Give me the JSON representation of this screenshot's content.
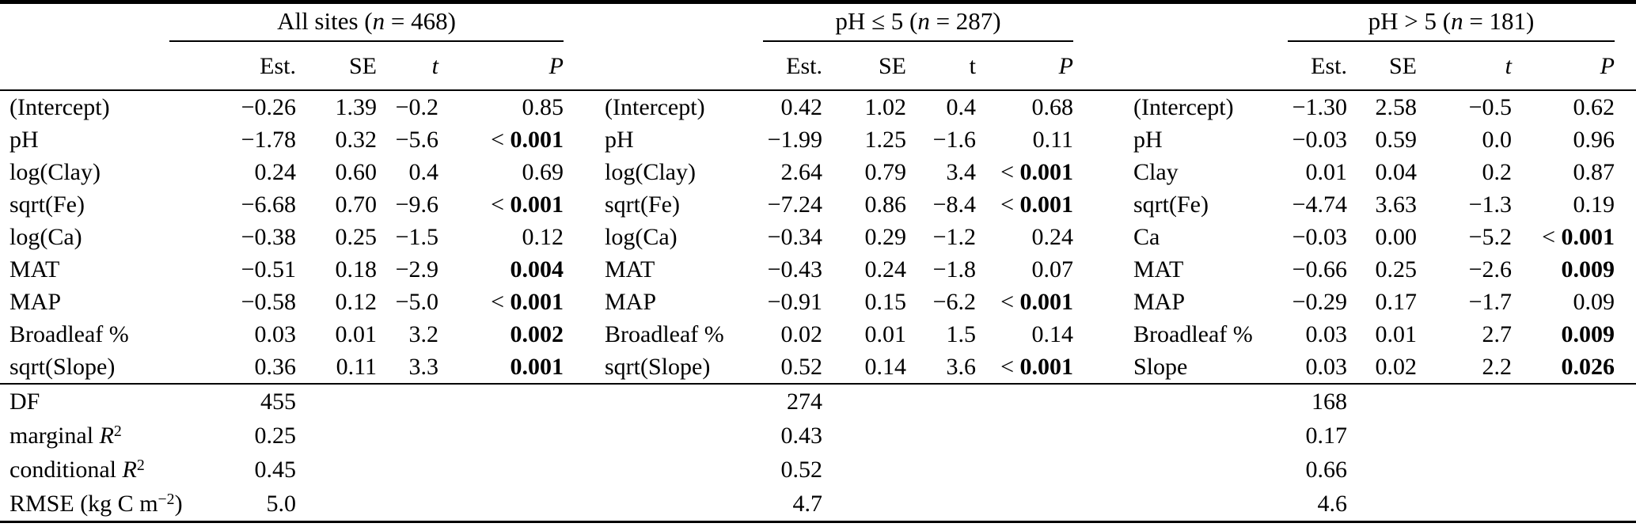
{
  "table": {
    "groups": [
      {
        "id": "all-sites",
        "title": {
          "pre": "All sites (",
          "it": "n",
          "post": " = 468)"
        },
        "columns": [
          {
            "label": "Est.",
            "italic": false
          },
          {
            "label": "SE",
            "italic": false
          },
          {
            "label": "t",
            "italic": true
          },
          {
            "label": "P",
            "italic": true
          }
        ],
        "rows": [
          {
            "label": "(Intercept)",
            "est": "−0.26",
            "se": "1.39",
            "t": "−0.2",
            "p": {
              "prefix": "",
              "value": "0.85",
              "bold": false
            }
          },
          {
            "label": "pH",
            "est": "−1.78",
            "se": "0.32",
            "t": "−5.6",
            "p": {
              "prefix": "< ",
              "value": "0.001",
              "bold": true
            }
          },
          {
            "label": "log(Clay)",
            "est": "0.24",
            "se": "0.60",
            "t": "0.4",
            "p": {
              "prefix": "",
              "value": "0.69",
              "bold": false
            }
          },
          {
            "label": "sqrt(Fe)",
            "est": "−6.68",
            "se": "0.70",
            "t": "−9.6",
            "p": {
              "prefix": "< ",
              "value": "0.001",
              "bold": true
            }
          },
          {
            "label": "log(Ca)",
            "est": "−0.38",
            "se": "0.25",
            "t": "−1.5",
            "p": {
              "prefix": "",
              "value": "0.12",
              "bold": false
            }
          },
          {
            "label": "MAT",
            "est": "−0.51",
            "se": "0.18",
            "t": "−2.9",
            "p": {
              "prefix": "",
              "value": "0.004",
              "bold": true
            }
          },
          {
            "label": "MAP",
            "est": "−0.58",
            "se": "0.12",
            "t": "−5.0",
            "p": {
              "prefix": "< ",
              "value": "0.001",
              "bold": true
            }
          },
          {
            "label": "Broadleaf %",
            "est": "0.03",
            "se": "0.01",
            "t": "3.2",
            "p": {
              "prefix": "",
              "value": "0.002",
              "bold": true
            }
          },
          {
            "label": "sqrt(Slope)",
            "est": "0.36",
            "se": "0.11",
            "t": "3.3",
            "p": {
              "prefix": "",
              "value": "0.001",
              "bold": true
            }
          }
        ],
        "summary": [
          "455",
          "0.25",
          "0.45",
          "5.0"
        ]
      },
      {
        "id": "ph-le-5",
        "title": {
          "pre": "pH ≤ 5 (",
          "it": "n",
          "post": " = 287)"
        },
        "columns": [
          {
            "label": "Est.",
            "italic": false
          },
          {
            "label": "SE",
            "italic": false
          },
          {
            "label": "t",
            "italic": false
          },
          {
            "label": "P",
            "italic": true
          }
        ],
        "rows": [
          {
            "label": "(Intercept)",
            "est": "0.42",
            "se": "1.02",
            "t": "0.4",
            "p": {
              "prefix": "",
              "value": "0.68",
              "bold": false
            }
          },
          {
            "label": "pH",
            "est": "−1.99",
            "se": "1.25",
            "t": "−1.6",
            "p": {
              "prefix": "",
              "value": "0.11",
              "bold": false
            }
          },
          {
            "label": "log(Clay)",
            "est": "2.64",
            "se": "0.79",
            "t": "3.4",
            "p": {
              "prefix": "< ",
              "value": "0.001",
              "bold": true
            }
          },
          {
            "label": "sqrt(Fe)",
            "est": "−7.24",
            "se": "0.86",
            "t": "−8.4",
            "p": {
              "prefix": "< ",
              "value": "0.001",
              "bold": true
            }
          },
          {
            "label": "log(Ca)",
            "est": "−0.34",
            "se": "0.29",
            "t": "−1.2",
            "p": {
              "prefix": "",
              "value": "0.24",
              "bold": false
            }
          },
          {
            "label": "MAT",
            "est": "−0.43",
            "se": "0.24",
            "t": "−1.8",
            "p": {
              "prefix": "",
              "value": "0.07",
              "bold": false
            }
          },
          {
            "label": "MAP",
            "est": "−0.91",
            "se": "0.15",
            "t": "−6.2",
            "p": {
              "prefix": "< ",
              "value": "0.001",
              "bold": true
            }
          },
          {
            "label": "Broadleaf %",
            "est": "0.02",
            "se": "0.01",
            "t": "1.5",
            "p": {
              "prefix": "",
              "value": "0.14",
              "bold": false
            }
          },
          {
            "label": "sqrt(Slope)",
            "est": "0.52",
            "se": "0.14",
            "t": "3.6",
            "p": {
              "prefix": "< ",
              "value": "0.001",
              "bold": true
            }
          }
        ],
        "summary": [
          "274",
          "0.43",
          "0.52",
          "4.7"
        ]
      },
      {
        "id": "ph-gt-5",
        "title": {
          "pre": "pH > 5 (",
          "it": "n",
          "post": " = 181)"
        },
        "columns": [
          {
            "label": "Est.",
            "italic": false
          },
          {
            "label": "SE",
            "italic": false
          },
          {
            "label": "t",
            "italic": true
          },
          {
            "label": "P",
            "italic": true
          }
        ],
        "rows": [
          {
            "label": "(Intercept)",
            "est": "−1.30",
            "se": "2.58",
            "t": "−0.5",
            "p": {
              "prefix": "",
              "value": "0.62",
              "bold": false
            }
          },
          {
            "label": "pH",
            "est": "−0.03",
            "se": "0.59",
            "t": "0.0",
            "p": {
              "prefix": "",
              "value": "0.96",
              "bold": false
            }
          },
          {
            "label": "Clay",
            "est": "0.01",
            "se": "0.04",
            "t": "0.2",
            "p": {
              "prefix": "",
              "value": "0.87",
              "bold": false
            }
          },
          {
            "label": "sqrt(Fe)",
            "est": "−4.74",
            "se": "3.63",
            "t": "−1.3",
            "p": {
              "prefix": "",
              "value": "0.19",
              "bold": false
            }
          },
          {
            "label": "Ca",
            "est": "−0.03",
            "se": "0.00",
            "t": "−5.2",
            "p": {
              "prefix": "< ",
              "value": "0.001",
              "bold": true
            }
          },
          {
            "label": "MAT",
            "est": "−0.66",
            "se": "0.25",
            "t": "−2.6",
            "p": {
              "prefix": "",
              "value": "0.009",
              "bold": true
            }
          },
          {
            "label": "MAP",
            "est": "−0.29",
            "se": "0.17",
            "t": "−1.7",
            "p": {
              "prefix": "",
              "value": "0.09",
              "bold": false
            }
          },
          {
            "label": "Broadleaf %",
            "est": "0.03",
            "se": "0.01",
            "t": "2.7",
            "p": {
              "prefix": "",
              "value": "0.009",
              "bold": true
            }
          },
          {
            "label": "Slope",
            "est": "0.03",
            "se": "0.02",
            "t": "2.2",
            "p": {
              "prefix": "",
              "value": "0.026",
              "bold": true
            }
          }
        ],
        "summary": [
          "168",
          "0.17",
          "0.66",
          "4.6"
        ]
      }
    ],
    "summary_labels": [
      {
        "pre": "DF",
        "it": "",
        "sup": "",
        "post": ""
      },
      {
        "pre": "marginal ",
        "it": "R",
        "sup": "2",
        "post": ""
      },
      {
        "pre": "conditional ",
        "it": "R",
        "sup": "2",
        "post": ""
      },
      {
        "pre": "RMSE (kg C m",
        "it": "",
        "sup": "−2",
        "post": ")"
      }
    ]
  }
}
